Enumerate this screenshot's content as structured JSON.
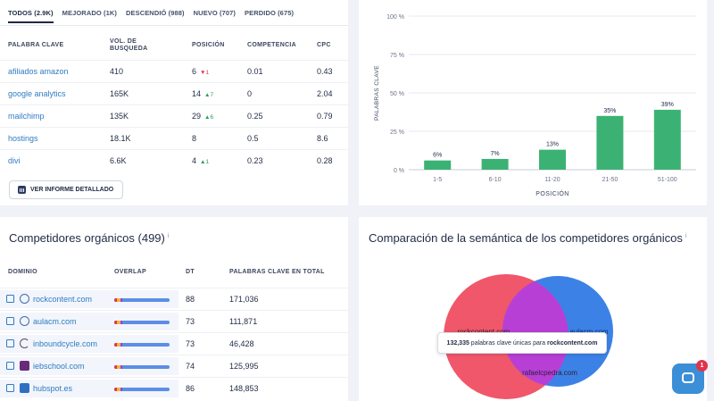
{
  "keywords": {
    "tabs": [
      {
        "label": "TODOS (2.9K)",
        "active": true
      },
      {
        "label": "MEJORADO (1K)",
        "active": false
      },
      {
        "label": "DESCENDIÓ (988)",
        "active": false
      },
      {
        "label": "NUEVO (707)",
        "active": false
      },
      {
        "label": "PERDIDO (675)",
        "active": false
      }
    ],
    "columns": {
      "keyword": "PALABRA CLAVE",
      "volume": "VOL. DE BUSQUEDA",
      "position": "POSICIÓN",
      "competition": "COMPETENCIA",
      "cpc": "CPC"
    },
    "rows": [
      {
        "keyword": "afiliados amazon",
        "volume": "410",
        "position": "6",
        "trend": "1",
        "trend_dir": "down",
        "competition": "0.01",
        "cpc": "0.43"
      },
      {
        "keyword": "google analytics",
        "volume": "165K",
        "position": "14",
        "trend": "7",
        "trend_dir": "up",
        "competition": "0",
        "cpc": "2.04"
      },
      {
        "keyword": "mailchimp",
        "volume": "135K",
        "position": "29",
        "trend": "6",
        "trend_dir": "up",
        "competition": "0.25",
        "cpc": "0.79"
      },
      {
        "keyword": "hostings",
        "volume": "18.1K",
        "position": "8",
        "trend": "",
        "trend_dir": "none",
        "competition": "0.5",
        "cpc": "8.6"
      },
      {
        "keyword": "divi",
        "volume": "6.6K",
        "position": "4",
        "trend": "1",
        "trend_dir": "up",
        "competition": "0.23",
        "cpc": "0.28"
      }
    ],
    "report_button": "VER INFORME DETALLADO"
  },
  "chart_data": {
    "type": "bar",
    "categories": [
      "1-5",
      "6-10",
      "11-20",
      "21-50",
      "51-100"
    ],
    "values": [
      6,
      7,
      13,
      35,
      39
    ],
    "value_labels": [
      "6%",
      "7%",
      "13%",
      "35%",
      "39%"
    ],
    "xlabel": "POSICIÓN",
    "ylabel": "PALABRAS CLAVE",
    "ylim": [
      0,
      100
    ],
    "yticks": [
      0,
      25,
      50,
      75,
      100
    ],
    "ytick_labels": [
      "0 %",
      "25 %",
      "50 %",
      "75 %",
      "100 %"
    ],
    "bar_color": "#3bb273",
    "grid": true
  },
  "competitors": {
    "title": "Competidores orgánicos (499)",
    "info_glyph": "i",
    "columns": {
      "domain": "DOMINIO",
      "overlap": "OVERLAP",
      "dt": "DT",
      "keywords": "PALABRAS CLAVE EN TOTAL"
    },
    "rows": [
      {
        "domain": "rockcontent.com",
        "overlap": 0.15,
        "dt": "88",
        "keywords": "171,036",
        "fav_icon": "globe-icon"
      },
      {
        "domain": "aulacm.com",
        "overlap": 0.15,
        "dt": "73",
        "keywords": "111,871",
        "fav_icon": "globe-icon"
      },
      {
        "domain": "inboundcycle.com",
        "overlap": 0.15,
        "dt": "73",
        "keywords": "46,428",
        "fav_icon": "spinner-icon"
      },
      {
        "domain": "iebschool.com",
        "overlap": 0.15,
        "dt": "74",
        "keywords": "125,995",
        "fav_icon": "ieb-logo-icon"
      },
      {
        "domain": "hubspot.es",
        "overlap": 0.15,
        "dt": "86",
        "keywords": "148,853",
        "fav_icon": "hubspot-logo-icon"
      }
    ]
  },
  "venn": {
    "title": "Comparación de la semántica de los competidores orgánicos",
    "info_glyph": "i",
    "labels": {
      "a": "rockcontent.com",
      "b": "aulacm.com",
      "c": "rafaelcpedra.com"
    },
    "tooltip": {
      "count": "132,335",
      "text": " palabras clave únicas para ",
      "domain": "rockcontent.com"
    },
    "colors": {
      "a": "#f0576a",
      "b": "#3c82e6",
      "overlap": "#b02fd8"
    }
  },
  "chat": {
    "badge": "1"
  }
}
